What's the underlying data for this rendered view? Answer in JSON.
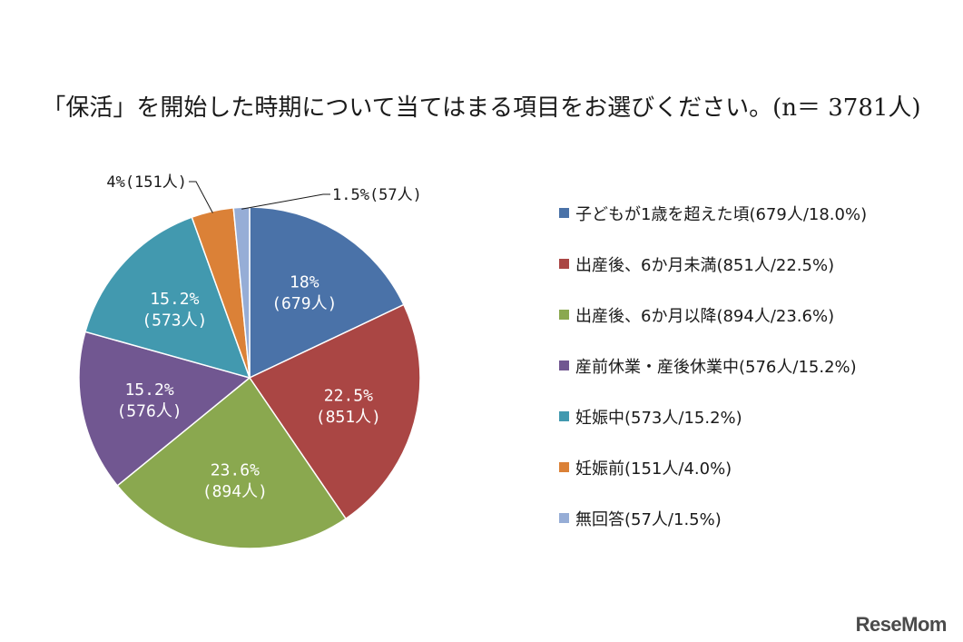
{
  "watermark": "ReseMom",
  "chart_data": {
    "type": "pie",
    "title": "「保活」を開始した時期について当てはまる項目をお選びください。(n＝ 3781人)",
    "start_angle": "12 o'clock",
    "direction": "clockwise",
    "legend_position": "right",
    "slices": [
      {
        "name": "子どもが1歳を超えた頃",
        "value": 679,
        "percent": 18.0,
        "color": "#4a72a8",
        "label_line1": "18%",
        "label_line2": "(679人)",
        "legend": "子どもが1歳を超えた頃(679人/18.0%)"
      },
      {
        "name": "出産後、6か月未満",
        "value": 851,
        "percent": 22.5,
        "color": "#aa4644",
        "label_line1": "22.5%",
        "label_line2": "(851人)",
        "legend": "出産後、6か月未満(851人/22.5%)"
      },
      {
        "name": "出産後、6か月以降",
        "value": 894,
        "percent": 23.6,
        "color": "#8aa84f",
        "label_line1": "23.6%",
        "label_line2": "(894人)",
        "legend": "出産後、6か月以降(894人/23.6%)"
      },
      {
        "name": "産前休業・産後休業中",
        "value": 576,
        "percent": 15.2,
        "color": "#715791",
        "label_line1": "15.2%",
        "label_line2": "(576人)",
        "legend": "産前休業・産後休業中(576人/15.2%)"
      },
      {
        "name": "妊娠中",
        "value": 573,
        "percent": 15.2,
        "color": "#4299af",
        "label_line1": "15.2%",
        "label_line2": "(573人)",
        "legend": "妊娠中(573人/15.2%)"
      },
      {
        "name": "妊娠前",
        "value": 151,
        "percent": 4.0,
        "color": "#db8137",
        "callout_label": "4%(151人)",
        "legend": "妊娠前(151人/4.0%)"
      },
      {
        "name": "無回答",
        "value": 57,
        "percent": 1.5,
        "color": "#96add6",
        "callout_label": "1.5%(57人)",
        "legend": "無回答(57人/1.5%)"
      }
    ]
  }
}
